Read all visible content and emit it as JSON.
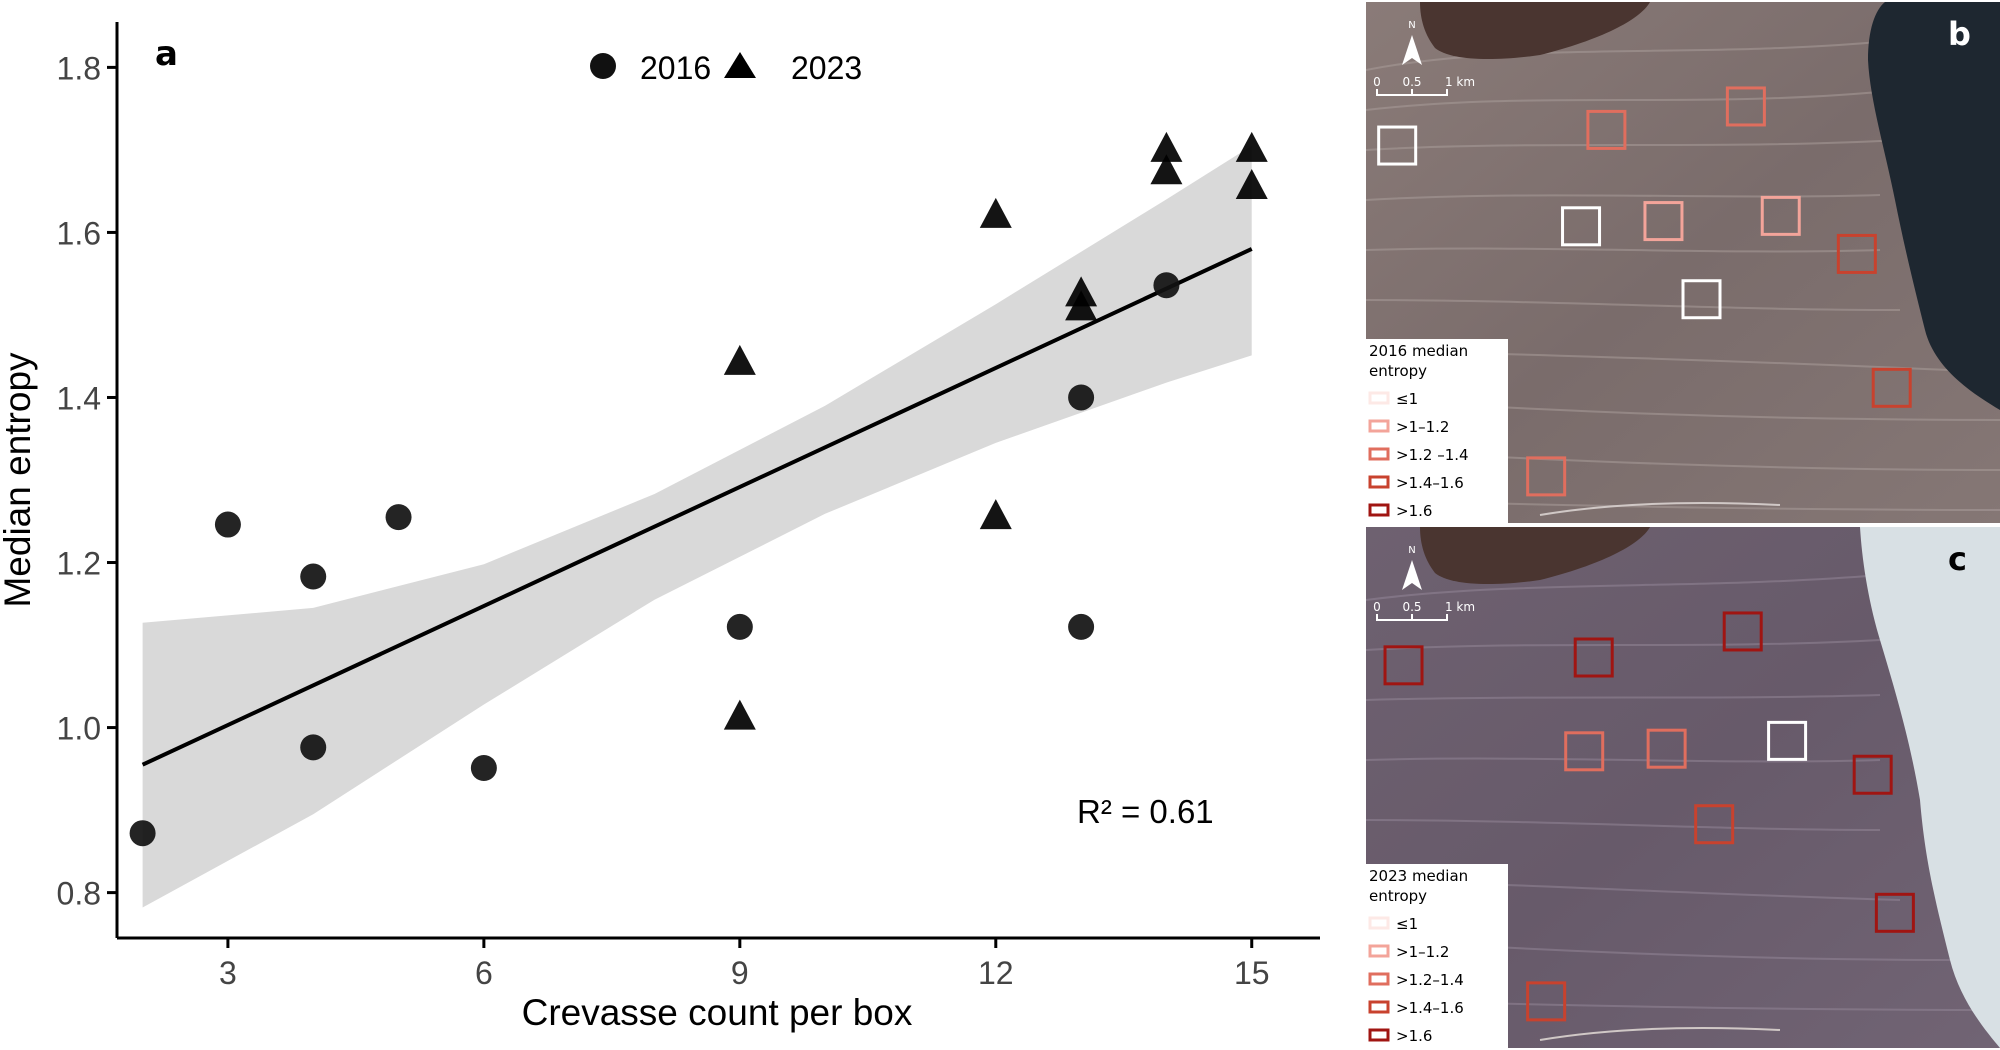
{
  "chart_data": {
    "type": "scatter",
    "panel_label": "a",
    "xlabel": "Crevasse count per box",
    "ylabel": "Median entropy",
    "xlim": [
      1.7,
      15.8
    ],
    "ylim": [
      0.745,
      1.855
    ],
    "xticks": [
      3,
      6,
      9,
      12,
      15
    ],
    "yticks": [
      0.8,
      1.0,
      1.2,
      1.4,
      1.6,
      1.8
    ],
    "grid": false,
    "legend_position": "top",
    "series": [
      {
        "name": "2016",
        "marker": "circle",
        "x": [
          2,
          3,
          4,
          4,
          5,
          6,
          9,
          13,
          13,
          14
        ],
        "y": [
          0.872,
          1.246,
          1.183,
          0.976,
          1.255,
          0.951,
          1.122,
          1.122,
          1.4,
          1.536
        ]
      },
      {
        "name": "2023",
        "marker": "triangle",
        "x": [
          9,
          9,
          12,
          12,
          13,
          13,
          14,
          14,
          15,
          15
        ],
        "y": [
          1.442,
          1.012,
          1.62,
          1.255,
          1.525,
          1.508,
          1.7,
          1.673,
          1.7,
          1.655
        ]
      }
    ],
    "fit": {
      "x_range": [
        2,
        15
      ],
      "y_at_start": 0.955,
      "y_at_end": 1.58,
      "ci_upper": [
        {
          "x": 2,
          "y": 1.127
        },
        {
          "x": 4,
          "y": 1.145
        },
        {
          "x": 6,
          "y": 1.198
        },
        {
          "x": 8,
          "y": 1.283
        },
        {
          "x": 10,
          "y": 1.39
        },
        {
          "x": 12,
          "y": 1.513
        },
        {
          "x": 14,
          "y": 1.64
        },
        {
          "x": 15,
          "y": 1.705
        }
      ],
      "ci_lower": [
        {
          "x": 2,
          "y": 0.782
        },
        {
          "x": 4,
          "y": 0.895
        },
        {
          "x": 6,
          "y": 1.028
        },
        {
          "x": 8,
          "y": 1.155
        },
        {
          "x": 10,
          "y": 1.259
        },
        {
          "x": 12,
          "y": 1.345
        },
        {
          "x": 14,
          "y": 1.418
        },
        {
          "x": 15,
          "y": 1.451
        }
      ],
      "r_squared_label": "R² = 0.61"
    },
    "colors": {
      "ribbon": "#d9d9d9",
      "line": "#000000",
      "point_2016": "#111111",
      "point_2023": "#000000"
    }
  },
  "maps": [
    {
      "panel_label": "b",
      "scale_ticks": [
        "0",
        "0.5",
        "1 km"
      ],
      "north_label": "N",
      "legend_title_line1": "2016 median",
      "legend_title_line2": "entropy",
      "legend_items": [
        {
          "label": "≤1",
          "color": "#fde9e6"
        },
        {
          "label": ">1–1.2",
          "color": "#f3a49a"
        },
        {
          "label": ">1.2 –1.4",
          "color": "#e06e5e"
        },
        {
          "label": ">1.4–1.6",
          "color": "#c8422e"
        },
        {
          "label": ">1.6",
          "color": "#a01512"
        }
      ],
      "boxes": [
        {
          "u": 0.02,
          "v": 0.24,
          "cls": 0
        },
        {
          "u": 0.35,
          "v": 0.21,
          "cls": 2
        },
        {
          "u": 0.57,
          "v": 0.165,
          "cls": 2
        },
        {
          "u": 0.31,
          "v": 0.395,
          "cls": 0
        },
        {
          "u": 0.44,
          "v": 0.385,
          "cls": 1
        },
        {
          "u": 0.625,
          "v": 0.375,
          "cls": 1
        },
        {
          "u": 0.745,
          "v": 0.448,
          "cls": 3
        },
        {
          "u": 0.5,
          "v": 0.535,
          "cls": 0
        },
        {
          "u": 0.8,
          "v": 0.705,
          "cls": 3
        },
        {
          "u": 0.255,
          "v": 0.875,
          "cls": 2
        }
      ]
    },
    {
      "panel_label": "c",
      "scale_ticks": [
        "0",
        "0.5",
        "1 km"
      ],
      "north_label": "N",
      "legend_title_line1": "2023 median",
      "legend_title_line2": "entropy",
      "legend_items": [
        {
          "label": "≤1",
          "color": "#fde9e6"
        },
        {
          "label": ">1–1.2",
          "color": "#f3a49a"
        },
        {
          "label": ">1.2–1.4",
          "color": "#e06e5e"
        },
        {
          "label": ">1.4–1.6",
          "color": "#c8422e"
        },
        {
          "label": ">1.6",
          "color": "#a01512"
        }
      ],
      "boxes": [
        {
          "u": 0.03,
          "v": 0.23,
          "cls": 4
        },
        {
          "u": 0.33,
          "v": 0.215,
          "cls": 4
        },
        {
          "u": 0.565,
          "v": 0.165,
          "cls": 4
        },
        {
          "u": 0.315,
          "v": 0.395,
          "cls": 2
        },
        {
          "u": 0.445,
          "v": 0.39,
          "cls": 2
        },
        {
          "u": 0.635,
          "v": 0.375,
          "cls": 0
        },
        {
          "u": 0.77,
          "v": 0.44,
          "cls": 4
        },
        {
          "u": 0.52,
          "v": 0.535,
          "cls": 3
        },
        {
          "u": 0.805,
          "v": 0.705,
          "cls": 4
        },
        {
          "u": 0.255,
          "v": 0.875,
          "cls": 3
        }
      ]
    }
  ]
}
